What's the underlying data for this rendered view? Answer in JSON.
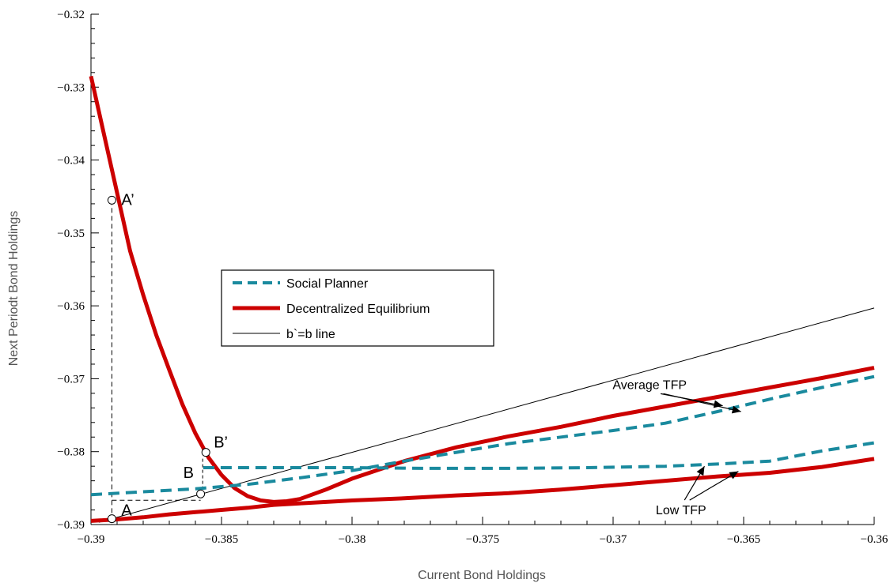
{
  "chart_data": {
    "type": "line",
    "xlabel": "Current Bond Holdings",
    "ylabel": "Next Periodt Bond Holdings",
    "xlim": [
      -0.39,
      -0.36
    ],
    "ylim": [
      -0.39,
      -0.32
    ],
    "x_ticks": [
      -0.39,
      -0.385,
      -0.38,
      -0.375,
      -0.37,
      -0.365,
      -0.36
    ],
    "x_tick_labels": [
      "−0.39",
      "−0.385",
      "−0.38",
      "−0.375",
      "−0.37",
      "−0.365",
      "−0.36"
    ],
    "y_ticks": [
      -0.39,
      -0.38,
      -0.37,
      -0.36,
      -0.35,
      -0.34,
      -0.33,
      -0.32
    ],
    "y_tick_labels": [
      "−0.39",
      "−0.38",
      "−0.37",
      "−0.36",
      "−0.35",
      "−0.34",
      "−0.33",
      "−0.32"
    ],
    "grid": false,
    "legend_position": "center-left",
    "series": [
      {
        "name": "Social Planner",
        "key": "sp_avg",
        "style": "dashed",
        "color": "#1a8a9e",
        "x": [
          -0.39,
          -0.388,
          -0.386,
          -0.384,
          -0.382,
          -0.38,
          -0.378,
          -0.376,
          -0.374,
          -0.372,
          -0.37,
          -0.368,
          -0.366,
          -0.364,
          -0.362,
          -0.36
        ],
        "y": [
          -0.3859,
          -0.3855,
          -0.3851,
          -0.3845,
          -0.3836,
          -0.3826,
          -0.3813,
          -0.3801,
          -0.3789,
          -0.378,
          -0.3771,
          -0.3761,
          -0.3745,
          -0.3728,
          -0.3712,
          -0.3697
        ]
      },
      {
        "name": "Social Planner",
        "key": "sp_low",
        "style": "dashed",
        "color": "#1a8a9e",
        "x": [
          -0.3857,
          -0.383,
          -0.38,
          -0.377,
          -0.374,
          -0.371,
          -0.368,
          -0.366,
          -0.364,
          -0.362,
          -0.36
        ],
        "y": [
          -0.3822,
          -0.3822,
          -0.3822,
          -0.3823,
          -0.3823,
          -0.3822,
          -0.382,
          -0.3817,
          -0.3813,
          -0.3799,
          -0.3788
        ]
      },
      {
        "name": "Decentralized Equilibrium",
        "key": "de_low",
        "style": "solid-thick",
        "color": "#cc0000",
        "x": [
          -0.39,
          -0.389,
          -0.388,
          -0.387,
          -0.386,
          -0.385,
          -0.384,
          -0.383,
          -0.382,
          -0.381,
          -0.38,
          -0.378,
          -0.376,
          -0.374,
          -0.372,
          -0.37,
          -0.368,
          -0.366,
          -0.364,
          -0.362,
          -0.36
        ],
        "y": [
          -0.3895,
          -0.3893,
          -0.389,
          -0.3886,
          -0.3883,
          -0.388,
          -0.3877,
          -0.3873,
          -0.3871,
          -0.3869,
          -0.3867,
          -0.3864,
          -0.386,
          -0.3857,
          -0.3852,
          -0.3846,
          -0.384,
          -0.3834,
          -0.3829,
          -0.3821,
          -0.381
        ]
      },
      {
        "name": "Decentralized Equilibrium",
        "key": "de_avg",
        "style": "solid-thick",
        "color": "#cc0000",
        "x": [
          -0.39,
          -0.3895,
          -0.389,
          -0.3885,
          -0.388,
          -0.3875,
          -0.387,
          -0.3865,
          -0.386,
          -0.3855,
          -0.385,
          -0.3845,
          -0.384,
          -0.3835,
          -0.383,
          -0.3825,
          -0.382,
          -0.381,
          -0.38,
          -0.378,
          -0.376,
          -0.374,
          -0.372,
          -0.37,
          -0.368,
          -0.366,
          -0.364,
          -0.362,
          -0.36
        ],
        "y": [
          -0.3285,
          -0.3365,
          -0.3445,
          -0.3525,
          -0.3585,
          -0.364,
          -0.3688,
          -0.3735,
          -0.3775,
          -0.3808,
          -0.3832,
          -0.385,
          -0.3861,
          -0.3867,
          -0.3869,
          -0.3868,
          -0.3865,
          -0.3852,
          -0.3837,
          -0.3813,
          -0.3794,
          -0.3779,
          -0.3766,
          -0.3751,
          -0.3738,
          -0.3725,
          -0.3712,
          -0.3699,
          -0.3685
        ]
      },
      {
        "name": "b`=b line",
        "key": "b45",
        "style": "solid-thin",
        "color": "#000000",
        "x": [
          -0.3897,
          -0.36
        ],
        "y": [
          -0.3897,
          -0.3603
        ]
      }
    ],
    "legend": [
      {
        "label": "Social Planner",
        "style": "dashed",
        "color": "#1a8a9e"
      },
      {
        "label": "Decentralized Equilibrium",
        "style": "solid-thick",
        "color": "#cc0000"
      },
      {
        "label": "b`=b line",
        "style": "solid-thin",
        "color": "#000000"
      }
    ],
    "points": [
      {
        "label": "A",
        "x": -0.3892,
        "y": -0.3892
      },
      {
        "label": "A’",
        "x": -0.3892,
        "y": -0.3455
      },
      {
        "label": "B",
        "x": -0.3858,
        "y": -0.3858
      },
      {
        "label": "B’",
        "x": -0.3856,
        "y": -0.3801
      }
    ],
    "annotations": [
      {
        "text": "Average TFP",
        "tx": -0.3686,
        "ty": -0.3714,
        "arrows_to": [
          [
            -0.3658,
            -0.3737
          ],
          [
            -0.3651,
            -0.3745
          ]
        ]
      },
      {
        "text": "Low TFP",
        "tx": -0.3674,
        "ty": -0.3886,
        "arrows_to": [
          [
            -0.3665,
            -0.382
          ],
          [
            -0.3652,
            -0.3827
          ]
        ]
      }
    ]
  }
}
